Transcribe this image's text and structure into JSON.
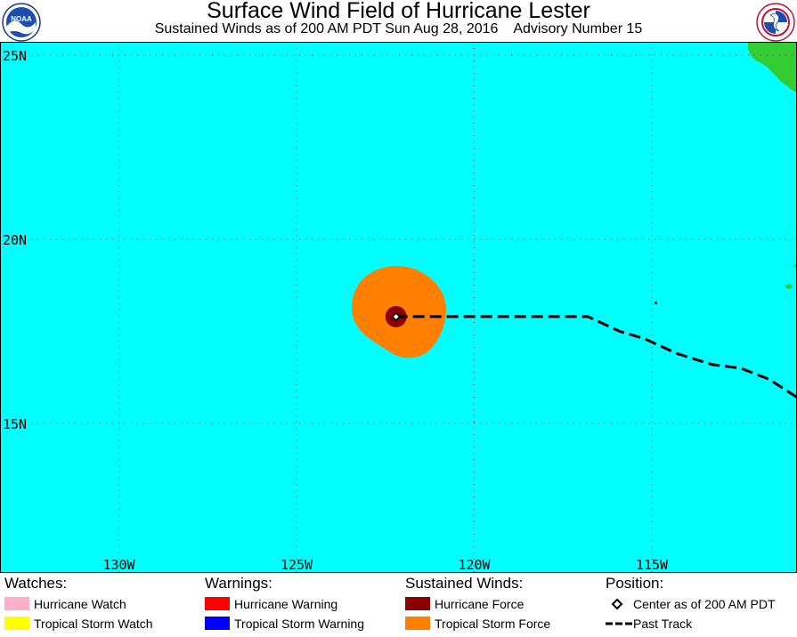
{
  "header": {
    "title": "Surface Wind Field of Hurricane Lester",
    "subtitle": "Sustained Winds as of 200 AM PDT Sun Aug 28, 2016    Advisory Number 15"
  },
  "logos": {
    "left": {
      "icon": "noaa-logo",
      "text": "NOAA"
    },
    "right": {
      "icon": "nws-logo"
    }
  },
  "map": {
    "ocean_color": "#00ffff",
    "land_color": "#33cc33",
    "grid_lat": [
      25,
      20,
      15
    ],
    "grid_lon": [
      -130,
      -125,
      -120,
      -115
    ],
    "lat_labels": [
      "25N",
      "20N",
      "15N"
    ],
    "lon_labels": [
      "130W",
      "125W",
      "120W",
      "115W"
    ],
    "storm_center": {
      "lat": 17.9,
      "lon": -122.2
    },
    "past_track": [
      {
        "lat": 17.9,
        "lon": -122.2
      },
      {
        "lat": 17.9,
        "lon": -119.0
      },
      {
        "lat": 17.9,
        "lon": -116.8
      },
      {
        "lat": 17.5,
        "lon": -115.9
      },
      {
        "lat": 17.3,
        "lon": -115.2
      },
      {
        "lat": 16.9,
        "lon": -114.3
      },
      {
        "lat": 16.6,
        "lon": -113.3
      },
      {
        "lat": 16.5,
        "lon": -112.5
      },
      {
        "lat": 16.2,
        "lon": -111.7
      },
      {
        "lat": 15.7,
        "lon": -110.9
      }
    ]
  },
  "legend": {
    "watches": {
      "heading": "Watches:",
      "items": [
        {
          "label": "Hurricane Watch",
          "color": "#ffafc8"
        },
        {
          "label": "Tropical Storm Watch",
          "color": "#ffff00"
        }
      ]
    },
    "warnings": {
      "heading": "Warnings:",
      "items": [
        {
          "label": "Hurricane Warning",
          "color": "#ff0000"
        },
        {
          "label": "Tropical Storm Warning",
          "color": "#0000ff"
        }
      ]
    },
    "winds": {
      "heading": "Sustained Winds:",
      "items": [
        {
          "label": "Hurricane Force",
          "color": "#8b0000"
        },
        {
          "label": "Tropical Storm Force",
          "color": "#ff8000"
        }
      ]
    },
    "position": {
      "heading": "Position:",
      "items": [
        {
          "label": "Center as of 200 AM PDT",
          "icon": "diamond-marker-icon"
        },
        {
          "label": "Past Track",
          "icon": "dashed-line-icon"
        }
      ]
    }
  }
}
